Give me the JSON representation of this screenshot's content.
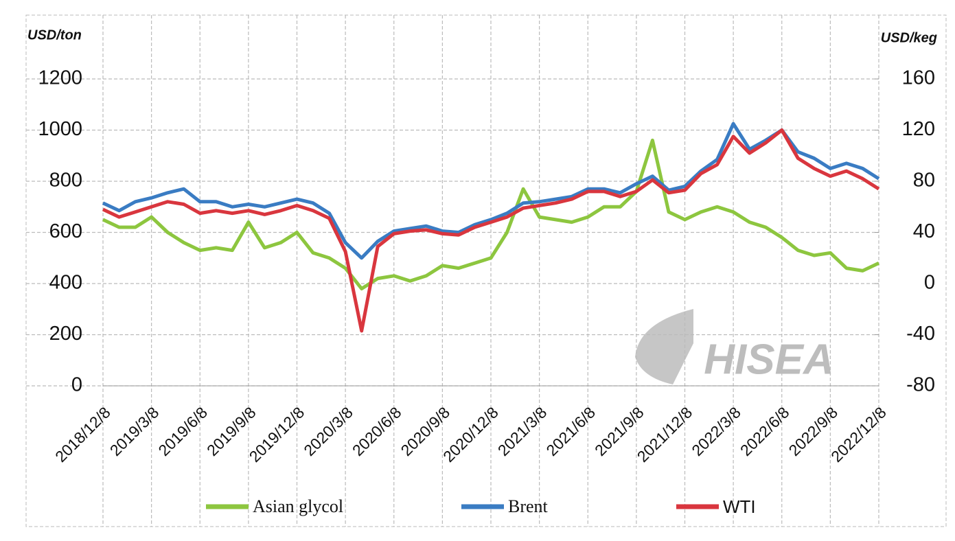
{
  "chart_data": {
    "type": "line",
    "y_label": "USD/ton",
    "y2_label": "USD/keg",
    "watermark": "HISEA",
    "categories": [
      "2018/12/8",
      null,
      null,
      "2019/3/8",
      null,
      null,
      "2019/6/8",
      null,
      null,
      "2019/9/8",
      null,
      null,
      "2019/12/8",
      null,
      null,
      "2020/3/8",
      null,
      null,
      "2020/6/8",
      null,
      null,
      "2020/9/8",
      null,
      null,
      "2020/12/8",
      null,
      null,
      "2021/3/8",
      null,
      null,
      "2021/6/8",
      null,
      null,
      "2021/9/8",
      null,
      null,
      "2021/12/8",
      null,
      null,
      "2022/3/8",
      null,
      null,
      "2022/6/8",
      null,
      null,
      "2022/9/8",
      null,
      null,
      "2022/12/8"
    ],
    "series": [
      {
        "name": "Asian glycol",
        "color": "#8dc63f",
        "axis": "y",
        "values": [
          650,
          620,
          620,
          660,
          600,
          560,
          530,
          540,
          530,
          640,
          540,
          560,
          600,
          520,
          500,
          460,
          380,
          420,
          430,
          410,
          430,
          470,
          460,
          480,
          500,
          600,
          770,
          660,
          650,
          640,
          660,
          700,
          700,
          760,
          960,
          680,
          650,
          680,
          700,
          680,
          640,
          620,
          580,
          530,
          510,
          520,
          460,
          450,
          480
        ]
      },
      {
        "name": "Brent",
        "color": "#3a7cc3",
        "axis": "y2",
        "values": [
          63,
          57,
          64,
          67,
          71,
          74,
          64,
          64,
          60,
          62,
          60,
          63,
          66,
          63,
          55,
          32,
          20,
          33,
          41,
          43,
          45,
          41,
          40,
          46,
          50,
          55,
          63,
          64,
          66,
          68,
          74,
          74,
          71,
          78,
          84,
          73,
          76,
          88,
          97,
          125,
          105,
          112,
          120,
          103,
          98,
          90,
          94,
          90,
          82
        ]
      },
      {
        "name": "WTI",
        "color": "#d9363e",
        "axis": "y2",
        "values": [
          58,
          52,
          56,
          60,
          64,
          62,
          55,
          57,
          55,
          57,
          54,
          57,
          61,
          57,
          51,
          25,
          -37,
          29,
          39,
          41,
          42,
          39,
          38,
          44,
          48,
          52,
          59,
          61,
          63,
          66,
          72,
          72,
          68,
          72,
          81,
          71,
          73,
          86,
          93,
          115,
          102,
          110,
          120,
          98,
          90,
          84,
          88,
          82,
          74
        ]
      }
    ],
    "ylim": [
      0,
      1200
    ],
    "yticks": [
      0,
      200,
      400,
      600,
      800,
      1000,
      1200
    ],
    "y2lim": [
      -80,
      160
    ],
    "y2ticks": [
      -80,
      -40,
      0,
      40,
      80,
      120,
      160
    ],
    "grid": true
  }
}
